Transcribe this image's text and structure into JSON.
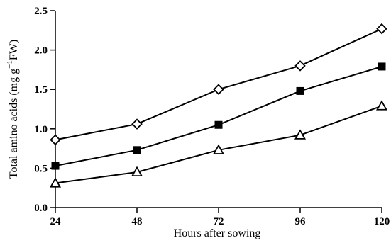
{
  "chart_data": {
    "type": "line",
    "categories": [
      "24",
      "48",
      "72",
      "96",
      "120"
    ],
    "x": [
      24,
      48,
      72,
      96,
      120
    ],
    "xlim": [
      24,
      120
    ],
    "ylim": [
      0,
      2.5
    ],
    "y_ticks": [
      "0.0",
      "0.5",
      "1.0",
      "1.5",
      "2.0",
      "2.5"
    ],
    "xlabel": "Hours after sowing",
    "ylabel_parts": [
      "Total amino acids (mg g",
      "−1",
      "FW)"
    ],
    "grid": false,
    "legend": "none",
    "series": [
      {
        "marker": "open-diamond",
        "values": [
          0.86,
          1.06,
          1.5,
          1.8,
          2.27
        ]
      },
      {
        "marker": "filled-square",
        "values": [
          0.53,
          0.73,
          1.05,
          1.48,
          1.79
        ]
      },
      {
        "marker": "open-triangle",
        "values": [
          0.31,
          0.45,
          0.73,
          0.92,
          1.29
        ]
      }
    ],
    "colors": {
      "line": "#000000",
      "marker_fill_open": "#ffffff",
      "marker_fill_filled": "#000000"
    }
  }
}
